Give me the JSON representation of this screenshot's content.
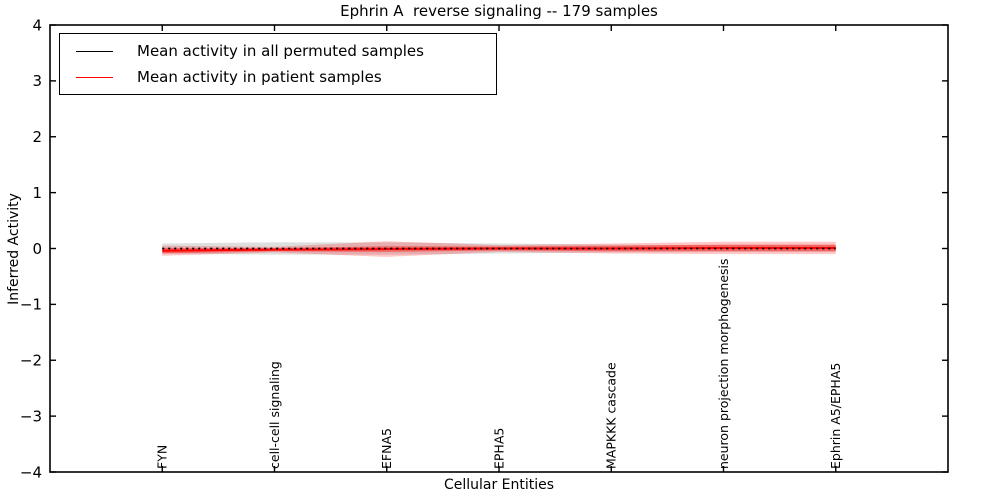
{
  "title": "Ephrin A  reverse signaling -- 179 samples",
  "legend": {
    "items": [
      {
        "label": "Mean activity in all permuted samples",
        "color": "#000000"
      },
      {
        "label": "Mean activity in patient samples",
        "color": "#ff0000"
      }
    ]
  },
  "axes": {
    "xlabel": "Cellular Entities",
    "ylabel": "Inferred Activity"
  },
  "chart_data": {
    "type": "line",
    "title": "Ephrin A  reverse signaling -- 179 samples",
    "xlabel": "Cellular Entities",
    "ylabel": "Inferred Activity",
    "ylim": [
      -4,
      4
    ],
    "ytick_values": [
      4,
      3,
      2,
      1,
      0,
      -1,
      -2,
      -3,
      -4
    ],
    "ytick_labels": [
      "4",
      "3",
      "2",
      "1",
      "0",
      "−1",
      "−2",
      "−3",
      "−4"
    ],
    "grid": false,
    "legend_position": "upper left",
    "categories": [
      "FYN",
      "cell-cell signaling",
      "EFNA5",
      "EPHA5",
      "MAPKKK cascade",
      "neuron projection morphogenesis",
      "Ephrin A5/EPHA5"
    ],
    "series": [
      {
        "name": "Mean activity in all permuted samples",
        "color": "#000000",
        "line_style": "dotted",
        "values": [
          0,
          0,
          0,
          0,
          0,
          0,
          0
        ],
        "band_halfwidth": [
          0.09,
          0.11,
          0.11,
          0.09,
          0.07,
          0.06,
          0.06
        ],
        "band_color": "#c8c8c8"
      },
      {
        "name": "Mean activity in patient samples",
        "color": "#ff0000",
        "line_style": "solid",
        "values": [
          -0.04,
          -0.02,
          -0.01,
          0.0,
          0.0,
          0.01,
          0.01
        ],
        "band_halfwidth": [
          0.09,
          0.05,
          0.14,
          0.06,
          0.09,
          0.11,
          0.11
        ],
        "inner_band_halfwidth": [
          0.05,
          0.03,
          0.05,
          0.035,
          0.05,
          0.06,
          0.06
        ],
        "band_color": "#ff0000"
      }
    ]
  }
}
